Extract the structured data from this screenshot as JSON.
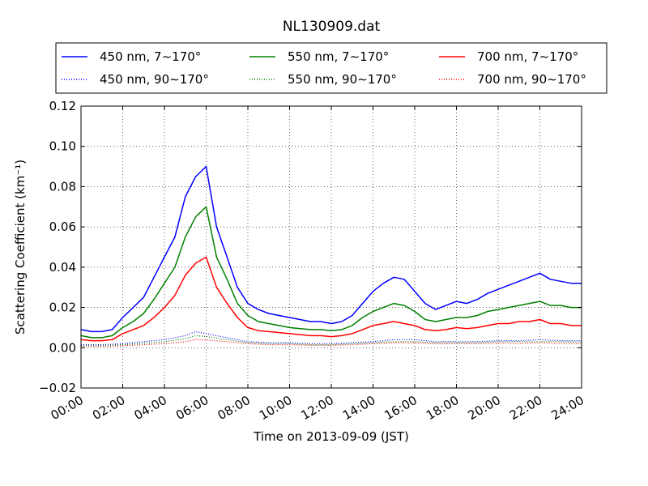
{
  "chart_data": {
    "type": "line",
    "title": "NL130909.dat",
    "xlabel": "Time on 2013-09-09 (JST)",
    "ylabel": "Scattering Coefficient (km⁻¹)",
    "xlim": [
      0,
      24
    ],
    "ylim": [
      -0.02,
      0.12
    ],
    "grid": true,
    "legend_position": "top",
    "x_tick_labels": [
      "00:00",
      "02:00",
      "04:00",
      "06:00",
      "08:00",
      "10:00",
      "12:00",
      "14:00",
      "16:00",
      "18:00",
      "20:00",
      "22:00",
      "24:00"
    ],
    "y_tick_labels": [
      "−0.02",
      "0.00",
      "0.02",
      "0.04",
      "0.06",
      "0.08",
      "0.10",
      "0.12"
    ],
    "series": [
      {
        "name": "450 nm, 7∼170°",
        "color": "#0000ff",
        "style": "solid",
        "x": [
          0,
          0.5,
          1,
          1.5,
          2,
          2.5,
          3,
          3.5,
          4,
          4.5,
          5,
          5.5,
          6,
          6.5,
          7,
          7.5,
          8,
          8.5,
          9,
          9.5,
          10,
          10.5,
          11,
          11.5,
          12,
          12.5,
          13,
          13.5,
          14,
          14.5,
          15,
          15.5,
          16,
          16.5,
          17,
          17.5,
          18,
          18.5,
          19,
          19.5,
          20,
          20.5,
          21,
          21.5,
          22,
          22.5,
          23,
          23.5,
          24
        ],
        "y": [
          0.009,
          0.008,
          0.008,
          0.009,
          0.015,
          0.02,
          0.025,
          0.035,
          0.045,
          0.055,
          0.075,
          0.085,
          0.09,
          0.06,
          0.045,
          0.03,
          0.022,
          0.019,
          0.017,
          0.016,
          0.015,
          0.014,
          0.013,
          0.013,
          0.012,
          0.013,
          0.016,
          0.022,
          0.028,
          0.032,
          0.035,
          0.034,
          0.028,
          0.022,
          0.019,
          0.021,
          0.023,
          0.022,
          0.024,
          0.027,
          0.029,
          0.031,
          0.033,
          0.035,
          0.037,
          0.034,
          0.033,
          0.032,
          0.032
        ]
      },
      {
        "name": "550 nm, 7∼170°",
        "color": "#008000",
        "style": "solid",
        "x": [
          0,
          0.5,
          1,
          1.5,
          2,
          2.5,
          3,
          3.5,
          4,
          4.5,
          5,
          5.5,
          6,
          6.5,
          7,
          7.5,
          8,
          8.5,
          9,
          9.5,
          10,
          10.5,
          11,
          11.5,
          12,
          12.5,
          13,
          13.5,
          14,
          14.5,
          15,
          15.5,
          16,
          16.5,
          17,
          17.5,
          18,
          18.5,
          19,
          19.5,
          20,
          20.5,
          21,
          21.5,
          22,
          22.5,
          23,
          23.5,
          24
        ],
        "y": [
          0.006,
          0.005,
          0.005,
          0.006,
          0.01,
          0.013,
          0.017,
          0.024,
          0.032,
          0.04,
          0.055,
          0.065,
          0.07,
          0.045,
          0.034,
          0.022,
          0.016,
          0.013,
          0.012,
          0.011,
          0.01,
          0.0095,
          0.009,
          0.009,
          0.0085,
          0.009,
          0.011,
          0.015,
          0.018,
          0.02,
          0.022,
          0.021,
          0.018,
          0.014,
          0.013,
          0.014,
          0.015,
          0.015,
          0.016,
          0.018,
          0.019,
          0.02,
          0.021,
          0.022,
          0.023,
          0.021,
          0.021,
          0.02,
          0.02
        ]
      },
      {
        "name": "700 nm, 7∼170°",
        "color": "#ff0000",
        "style": "solid",
        "x": [
          0,
          0.5,
          1,
          1.5,
          2,
          2.5,
          3,
          3.5,
          4,
          4.5,
          5,
          5.5,
          6,
          6.5,
          7,
          7.5,
          8,
          8.5,
          9,
          9.5,
          10,
          10.5,
          11,
          11.5,
          12,
          12.5,
          13,
          13.5,
          14,
          14.5,
          15,
          15.5,
          16,
          16.5,
          17,
          17.5,
          18,
          18.5,
          19,
          19.5,
          20,
          20.5,
          21,
          21.5,
          22,
          22.5,
          23,
          23.5,
          24
        ],
        "y": [
          0.004,
          0.0035,
          0.0035,
          0.004,
          0.007,
          0.009,
          0.011,
          0.015,
          0.02,
          0.026,
          0.036,
          0.042,
          0.045,
          0.03,
          0.022,
          0.015,
          0.01,
          0.0085,
          0.008,
          0.0075,
          0.007,
          0.0065,
          0.006,
          0.006,
          0.0055,
          0.006,
          0.007,
          0.009,
          0.011,
          0.012,
          0.013,
          0.012,
          0.011,
          0.009,
          0.0085,
          0.009,
          0.01,
          0.0095,
          0.01,
          0.011,
          0.012,
          0.012,
          0.013,
          0.013,
          0.014,
          0.012,
          0.012,
          0.011,
          0.011
        ]
      },
      {
        "name": "450 nm, 90∼170°",
        "color": "#0000ff",
        "style": "dotted",
        "x": [
          0,
          1,
          2,
          3,
          4,
          5,
          5.5,
          6,
          7,
          8,
          9,
          10,
          11,
          12,
          13,
          14,
          15,
          16,
          17,
          18,
          19,
          20,
          21,
          22,
          23,
          24
        ],
        "y": [
          0.0015,
          0.0015,
          0.002,
          0.003,
          0.004,
          0.006,
          0.008,
          0.007,
          0.005,
          0.003,
          0.0025,
          0.0025,
          0.002,
          0.002,
          0.0025,
          0.003,
          0.004,
          0.004,
          0.003,
          0.003,
          0.003,
          0.0035,
          0.0035,
          0.004,
          0.0035,
          0.0035
        ]
      },
      {
        "name": "550 nm, 90∼170°",
        "color": "#008000",
        "style": "dotted",
        "x": [
          0,
          1,
          2,
          3,
          4,
          5,
          5.5,
          6,
          7,
          8,
          9,
          10,
          11,
          12,
          13,
          14,
          15,
          16,
          17,
          18,
          19,
          20,
          21,
          22,
          23,
          24
        ],
        "y": [
          0.001,
          0.001,
          0.0015,
          0.0022,
          0.003,
          0.0045,
          0.006,
          0.0055,
          0.004,
          0.0025,
          0.002,
          0.002,
          0.0015,
          0.0015,
          0.002,
          0.0025,
          0.003,
          0.003,
          0.0025,
          0.0025,
          0.0025,
          0.003,
          0.003,
          0.003,
          0.003,
          0.0028
        ]
      },
      {
        "name": "700 nm, 90∼170°",
        "color": "#ff0000",
        "style": "dotted",
        "x": [
          0,
          1,
          2,
          3,
          4,
          5,
          5.5,
          6,
          7,
          8,
          9,
          10,
          11,
          12,
          13,
          14,
          15,
          16,
          17,
          18,
          19,
          20,
          21,
          22,
          23,
          24
        ],
        "y": [
          0.0007,
          0.0007,
          0.001,
          0.0015,
          0.002,
          0.003,
          0.004,
          0.0038,
          0.003,
          0.002,
          0.0015,
          0.0015,
          0.0012,
          0.0012,
          0.0015,
          0.002,
          0.0025,
          0.0025,
          0.002,
          0.002,
          0.002,
          0.0022,
          0.0022,
          0.0025,
          0.0022,
          0.002
        ]
      }
    ]
  }
}
